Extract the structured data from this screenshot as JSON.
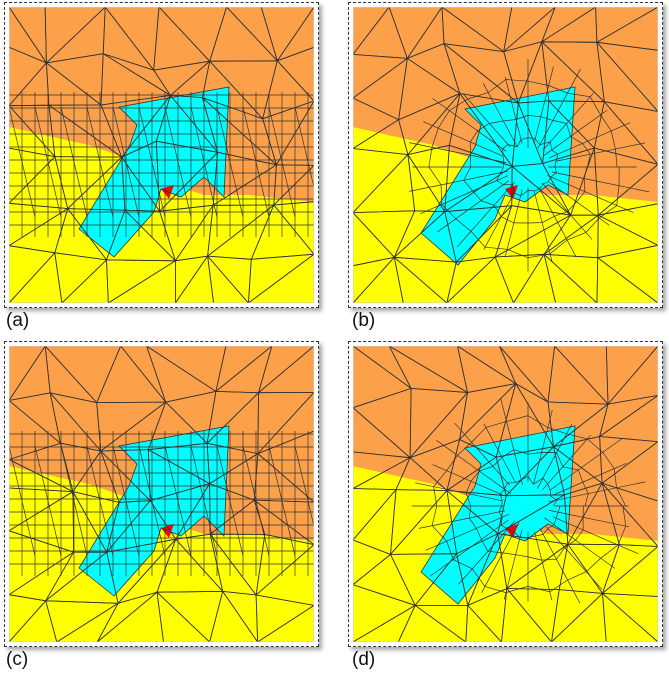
{
  "colors": {
    "orange": "#FCA04A",
    "yellow": "#FFFF00",
    "cyan": "#00FFFF",
    "red": "#FF0000",
    "edge": "#333333"
  },
  "panels": [
    {
      "id": "a",
      "label": "(a)",
      "mesh": "structured"
    },
    {
      "id": "b",
      "label": "(b)",
      "mesh": "adapted"
    },
    {
      "id": "c",
      "label": "(c)",
      "mesh": "structured"
    },
    {
      "id": "d",
      "label": "(d)",
      "mesh": "adapted"
    }
  ]
}
